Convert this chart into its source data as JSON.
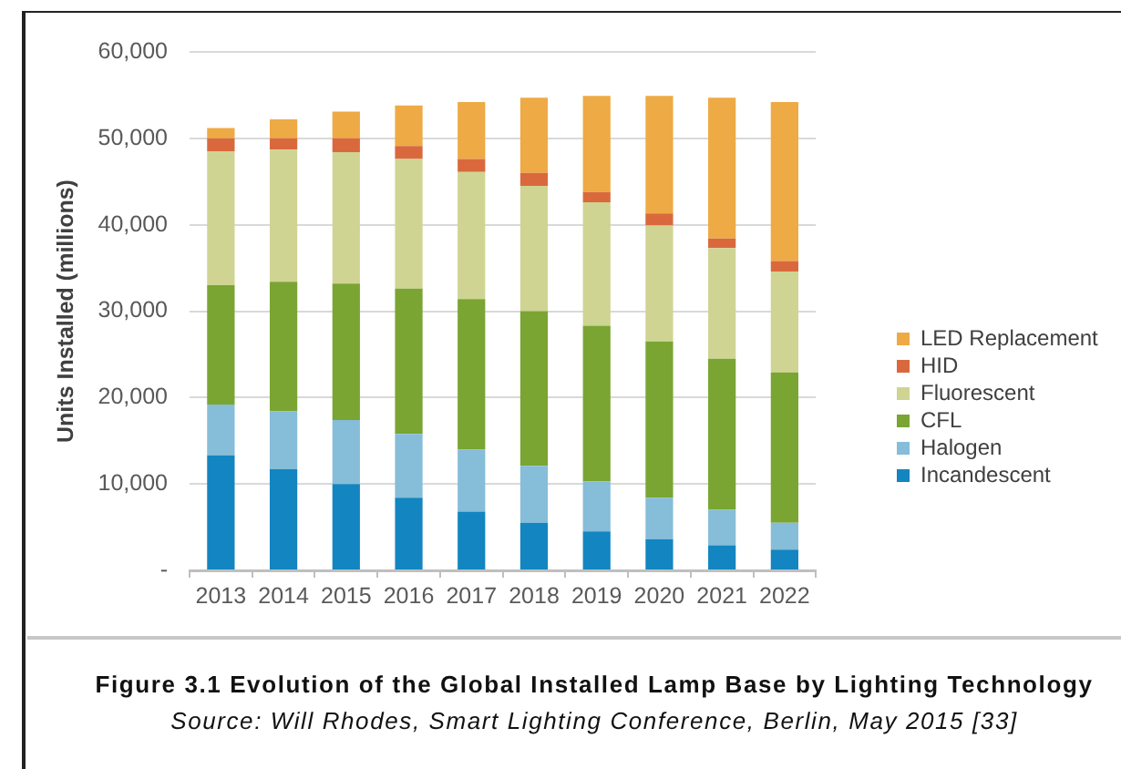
{
  "chart_data": {
    "type": "bar",
    "title": "Figure 3.1 Evolution of the Global Installed Lamp Base by Lighting Technology",
    "ylabel": "Units Installed (millions)",
    "annotations": [
      "Source: Will Rhodes, Smart Lighting Conference, Berlin, May 2015 [33]"
    ],
    "categories": [
      "2013",
      "2014",
      "2015",
      "2016",
      "2017",
      "2018",
      "2019",
      "2020",
      "2021",
      "2022"
    ],
    "stacked": true,
    "series": [
      {
        "name": "Incandescent",
        "color": "#1385c1",
        "values": [
          13300,
          11700,
          10000,
          8400,
          6800,
          5500,
          4500,
          3600,
          2900,
          2400
        ]
      },
      {
        "name": "Halogen",
        "color": "#86bdd8",
        "values": [
          5900,
          6700,
          7400,
          7400,
          7200,
          6600,
          5800,
          4800,
          4100,
          3100
        ]
      },
      {
        "name": "CFL",
        "color": "#7aa532",
        "values": [
          13800,
          15000,
          15800,
          16800,
          17400,
          17900,
          18000,
          18100,
          17500,
          17400
        ]
      },
      {
        "name": "Fluorescent",
        "color": "#cfd493",
        "values": [
          15500,
          15300,
          15200,
          15000,
          14700,
          14500,
          14300,
          13400,
          12800,
          11700
        ]
      },
      {
        "name": "HID",
        "color": "#d9693d",
        "values": [
          1500,
          1300,
          1600,
          1500,
          1500,
          1500,
          1200,
          1400,
          1100,
          1200
        ]
      },
      {
        "name": "LED Replacement",
        "color": "#eeaa44",
        "values": [
          1200,
          2200,
          3100,
          4700,
          6600,
          8700,
          11100,
          13600,
          16300,
          18400
        ]
      }
    ],
    "ylim": [
      0,
      60000
    ],
    "yticks": [
      {
        "value": 0,
        "label": "-"
      },
      {
        "value": 10000,
        "label": "10,000"
      },
      {
        "value": 20000,
        "label": "20,000"
      },
      {
        "value": 30000,
        "label": "30,000"
      },
      {
        "value": 40000,
        "label": "40,000"
      },
      {
        "value": 50000,
        "label": "50,000"
      },
      {
        "value": 60000,
        "label": "60,000"
      }
    ],
    "grid": "y",
    "legend": "right"
  }
}
